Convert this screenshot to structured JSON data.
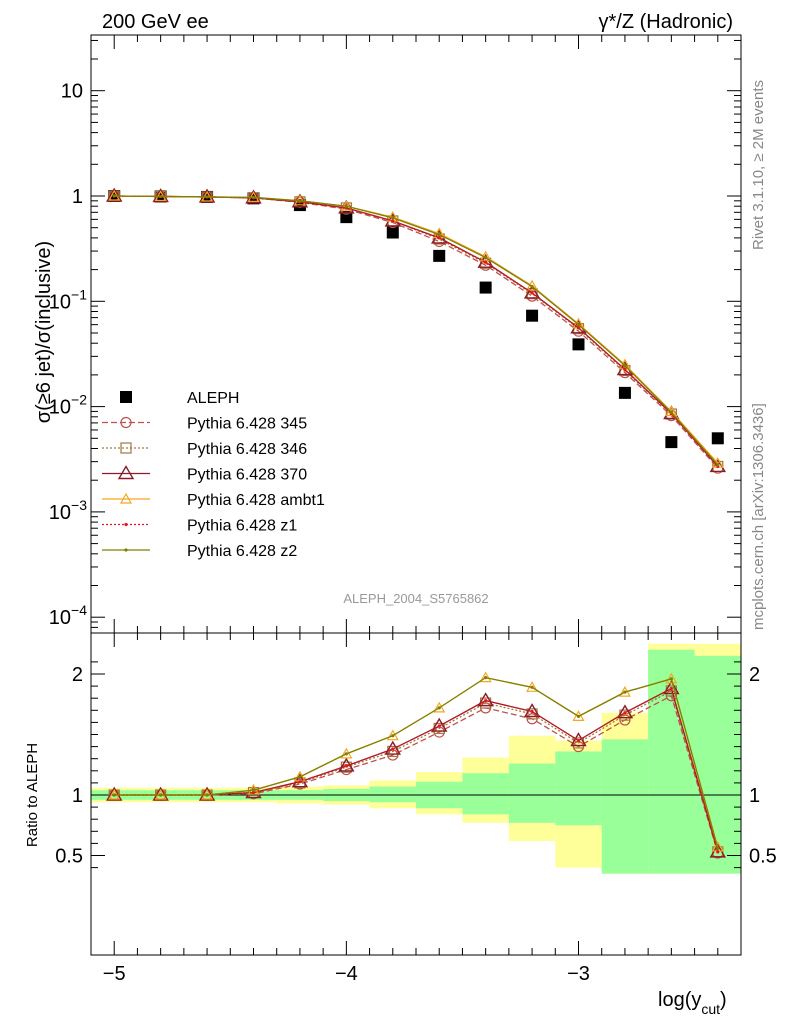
{
  "header": {
    "left": "200 GeV ee",
    "right": "γ*/Z (Hadronic)"
  },
  "side_labels": {
    "rivet": "Rivet 3.1.10, ≥ 2M events",
    "mcplots": "mcplots.cern.ch [arXiv:1306.3436]"
  },
  "watermark": "ALEPH_2004_S5765862",
  "colors": {
    "band_yellow": "#ffff99",
    "band_green": "#99ff99",
    "data": "#000000",
    "p345": "#c0504d",
    "p346": "#a0783c",
    "p370": "#8b1a2a",
    "ambt1": "#f5a623",
    "z1": "#e31a1c",
    "z2": "#808000"
  },
  "chart_data": [
    {
      "type": "scatter",
      "panel": "main",
      "ylabel": "σ(≥6 jet)/σ(inclusive)",
      "yscale": "log",
      "ylim": [
        8e-05,
        35
      ],
      "xlim": [
        -5.1,
        -2.3
      ],
      "x": [
        -5.0,
        -4.8,
        -4.6,
        -4.4,
        -4.2,
        -4.0,
        -3.8,
        -3.6,
        -3.4,
        -3.2,
        -3.0,
        -2.8,
        -2.6,
        -2.4
      ],
      "ytick_labels": [
        "10^-4",
        "10^-3",
        "10^-2",
        "10^-1",
        "1",
        "10"
      ],
      "legend_position": "lower-left",
      "series": [
        {
          "name": "ALEPH",
          "style": "data",
          "values": [
            1.0,
            0.99,
            0.98,
            0.95,
            0.82,
            0.63,
            0.45,
            0.27,
            0.135,
            0.073,
            0.039,
            0.0135,
            0.0046,
            0.005
          ]
        },
        {
          "name": "Pythia 6.428 345",
          "style": "p345",
          "values": [
            1.0,
            0.99,
            0.98,
            0.96,
            0.87,
            0.75,
            0.56,
            0.37,
            0.22,
            0.112,
            0.052,
            0.021,
            0.0082,
            0.0026
          ]
        },
        {
          "name": "Pythia 6.428 346",
          "style": "p346",
          "values": [
            1.0,
            0.99,
            0.98,
            0.96,
            0.88,
            0.77,
            0.58,
            0.39,
            0.23,
            0.118,
            0.055,
            0.022,
            0.0085,
            0.0027
          ]
        },
        {
          "name": "Pythia 6.428 370",
          "style": "p370",
          "values": [
            1.0,
            0.99,
            0.98,
            0.96,
            0.88,
            0.77,
            0.58,
            0.4,
            0.235,
            0.12,
            0.056,
            0.0225,
            0.0086,
            0.0027
          ]
        },
        {
          "name": "Pythia 6.428 ambt1",
          "style": "ambt1",
          "values": [
            1.0,
            0.99,
            0.98,
            0.97,
            0.9,
            0.8,
            0.63,
            0.44,
            0.265,
            0.14,
            0.061,
            0.025,
            0.009,
            0.0029
          ]
        },
        {
          "name": "Pythia 6.428 z1",
          "style": "z1",
          "values": [
            1.0,
            0.99,
            0.98,
            0.96,
            0.88,
            0.77,
            0.58,
            0.4,
            0.235,
            0.12,
            0.056,
            0.0225,
            0.0086,
            0.0027
          ]
        },
        {
          "name": "Pythia 6.428 z2",
          "style": "z2",
          "values": [
            1.0,
            0.99,
            0.98,
            0.97,
            0.9,
            0.8,
            0.62,
            0.43,
            0.26,
            0.138,
            0.06,
            0.0245,
            0.0088,
            0.0028
          ]
        }
      ]
    },
    {
      "type": "line",
      "panel": "ratio",
      "ylabel": "Ratio to ALEPH",
      "xlabel": "log(y",
      "xlabel_sub": "cut",
      "xlabel_close": ")",
      "ylim": [
        0.35,
        2.25
      ],
      "xlim": [
        -5.1,
        -2.3
      ],
      "x": [
        -5.0,
        -4.8,
        -4.6,
        -4.4,
        -4.2,
        -4.0,
        -3.8,
        -3.6,
        -3.4,
        -3.2,
        -3.0,
        -2.8,
        -2.6,
        -2.4
      ],
      "xtick_labels": [
        "−5",
        "−4",
        "−3"
      ],
      "xtick_values": [
        -5,
        -4,
        -3
      ],
      "ytick_labels": [
        "0.5",
        "1",
        "2"
      ],
      "ytick_values": [
        0.5,
        1,
        2
      ],
      "bands": {
        "bin_edges": [
          -5.1,
          -4.9,
          -4.7,
          -4.5,
          -4.3,
          -4.1,
          -3.9,
          -3.7,
          -3.5,
          -3.3,
          -3.1,
          -2.9,
          -2.7,
          -2.5,
          -2.3
        ],
        "yellow": [
          [
            0.94,
            1.06
          ],
          [
            0.94,
            1.06
          ],
          [
            0.94,
            1.06
          ],
          [
            0.94,
            1.06
          ],
          [
            0.93,
            1.07
          ],
          [
            0.92,
            1.08
          ],
          [
            0.89,
            1.12
          ],
          [
            0.84,
            1.19
          ],
          [
            0.77,
            1.31
          ],
          [
            0.62,
            1.49
          ],
          [
            0.4,
            1.45
          ],
          [
            0.35,
            1.68
          ],
          [
            0.35,
            2.25
          ],
          [
            0.35,
            2.25
          ]
        ],
        "green": [
          [
            0.96,
            1.04
          ],
          [
            0.96,
            1.04
          ],
          [
            0.96,
            1.04
          ],
          [
            0.96,
            1.04
          ],
          [
            0.96,
            1.04
          ],
          [
            0.95,
            1.05
          ],
          [
            0.94,
            1.07
          ],
          [
            0.89,
            1.11
          ],
          [
            0.84,
            1.18
          ],
          [
            0.77,
            1.26
          ],
          [
            0.75,
            1.36
          ],
          [
            0.35,
            1.46
          ],
          [
            0.35,
            2.2
          ],
          [
            0.35,
            2.15
          ]
        ]
      },
      "series": [
        {
          "name": "Pythia 6.428 345",
          "style": "p345",
          "values": [
            1.0,
            1.0,
            1.0,
            1.01,
            1.09,
            1.21,
            1.33,
            1.52,
            1.72,
            1.63,
            1.4,
            1.62,
            1.82,
            0.52
          ]
        },
        {
          "name": "Pythia 6.428 346",
          "style": "p346",
          "values": [
            1.0,
            1.0,
            1.0,
            1.02,
            1.1,
            1.23,
            1.36,
            1.55,
            1.76,
            1.67,
            1.43,
            1.66,
            1.86,
            0.53
          ]
        },
        {
          "name": "Pythia 6.428 370",
          "style": "p370",
          "values": [
            1.0,
            1.0,
            1.0,
            1.02,
            1.11,
            1.24,
            1.38,
            1.57,
            1.78,
            1.69,
            1.45,
            1.68,
            1.88,
            0.53
          ]
        },
        {
          "name": "Pythia 6.428 ambt1",
          "style": "ambt1",
          "values": [
            1.0,
            1.0,
            1.0,
            1.04,
            1.15,
            1.34,
            1.49,
            1.72,
            1.97,
            1.89,
            1.65,
            1.85,
            1.96,
            0.57
          ]
        },
        {
          "name": "Pythia 6.428 z1",
          "style": "z1",
          "values": [
            1.0,
            1.0,
            1.0,
            1.02,
            1.11,
            1.24,
            1.38,
            1.57,
            1.78,
            1.69,
            1.45,
            1.68,
            1.88,
            0.53
          ]
        },
        {
          "name": "Pythia 6.428 z2",
          "style": "z2",
          "values": [
            1.0,
            1.0,
            1.0,
            1.04,
            1.15,
            1.34,
            1.49,
            1.72,
            1.97,
            1.89,
            1.65,
            1.85,
            1.96,
            0.56
          ]
        }
      ]
    }
  ]
}
